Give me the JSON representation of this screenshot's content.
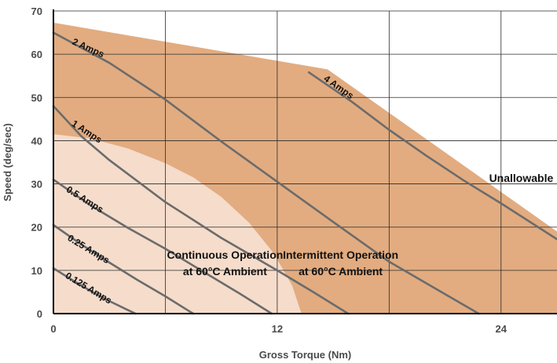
{
  "chart_data": {
    "type": "area",
    "title": "",
    "xlabel": "Gross Torque (Nm)",
    "ylabel": "Speed (deg/sec)",
    "xlim": [
      0,
      27
    ],
    "ylim": [
      0,
      70
    ],
    "x_ticks": [
      0,
      12,
      24
    ],
    "y_ticks": [
      0,
      10,
      20,
      30,
      40,
      50,
      60,
      70
    ],
    "grid": true,
    "colors": {
      "intermittent_region": "#e2ac80",
      "continuous_region": "#f5dccb",
      "curve": "#6b6b6b",
      "grid": "#2a2a2a",
      "axis": "#000000",
      "text": "#111111"
    },
    "regions": [
      {
        "name": "intermittent",
        "labels": [
          "Intermittent Operation",
          "at 60°C  Ambient"
        ],
        "label_at": [
          15.4,
          12.7
        ],
        "boundary": [
          [
            0,
            67.3
          ],
          [
            14.7,
            56.5
          ],
          [
            27,
            19
          ]
        ]
      },
      {
        "name": "continuous",
        "labels": [
          "Continuous Operation",
          "at 60°C Ambient"
        ],
        "label_at": [
          9.2,
          12.7
        ],
        "boundary": [
          [
            0,
            41.5
          ],
          [
            2,
            40.5
          ],
          [
            4,
            38.2
          ],
          [
            6,
            34.8
          ],
          [
            7.5,
            31.5
          ],
          [
            9,
            27
          ],
          [
            10.5,
            21
          ],
          [
            11.8,
            14
          ],
          [
            12.8,
            6.5
          ],
          [
            13.3,
            0
          ]
        ]
      },
      {
        "name": "unallowable",
        "labels": [
          "Unallowable"
        ],
        "label_at": [
          26.8,
          30.5
        ]
      }
    ],
    "series": [
      {
        "name": "0.125 Amps",
        "label_at": [
          1.8,
          5.3
        ],
        "label_angle": 31,
        "points": [
          [
            0,
            10.5
          ],
          [
            1,
            7.8
          ],
          [
            2,
            5.2
          ],
          [
            3,
            2.9
          ],
          [
            4,
            0.8
          ],
          [
            4.4,
            0
          ]
        ]
      },
      {
        "name": "0.25 Amps",
        "label_at": [
          1.8,
          14.3
        ],
        "label_angle": 31,
        "points": [
          [
            0,
            20.5
          ],
          [
            1.5,
            16
          ],
          [
            3,
            11.8
          ],
          [
            4.5,
            7.8
          ],
          [
            6,
            4
          ],
          [
            7.3,
            0.5
          ],
          [
            7.5,
            0
          ]
        ]
      },
      {
        "name": "0.5 Amps",
        "label_at": [
          1.6,
          25.8
        ],
        "label_angle": 32,
        "points": [
          [
            0,
            31
          ],
          [
            2,
            25
          ],
          [
            4,
            19.8
          ],
          [
            6,
            15
          ],
          [
            8,
            9.8
          ],
          [
            10,
            4.6
          ],
          [
            11.7,
            0
          ]
        ]
      },
      {
        "name": "1 Amps",
        "label_at": [
          1.7,
          41.5
        ],
        "label_angle": 33,
        "points": [
          [
            0,
            48
          ],
          [
            1.5,
            41
          ],
          [
            3,
            35.5
          ],
          [
            6,
            25.8
          ],
          [
            9,
            17.5
          ],
          [
            12,
            10
          ],
          [
            14,
            4.8
          ],
          [
            15.8,
            0
          ]
        ]
      },
      {
        "name": "2 Amps",
        "label_at": [
          1.8,
          60.8
        ],
        "label_angle": 24,
        "points": [
          [
            0,
            65
          ],
          [
            3,
            58
          ],
          [
            6,
            49.5
          ],
          [
            9,
            39.8
          ],
          [
            12,
            30.5
          ],
          [
            15,
            21.2
          ],
          [
            18,
            12
          ],
          [
            21,
            4.5
          ],
          [
            22.8,
            0
          ]
        ]
      },
      {
        "name": "4 Amps",
        "label_at": [
          15.2,
          51.8
        ],
        "label_angle": 35,
        "points": [
          [
            13.7,
            55.8
          ],
          [
            16,
            49
          ],
          [
            18,
            42.5
          ],
          [
            20,
            36.5
          ],
          [
            22,
            30.8
          ],
          [
            24,
            25.5
          ],
          [
            27,
            17.2
          ]
        ]
      }
    ]
  }
}
